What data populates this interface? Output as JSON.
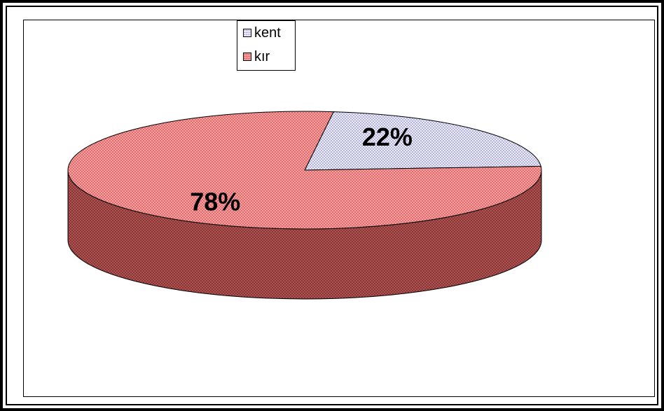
{
  "chart_data": {
    "type": "pie",
    "categories": [
      "kent",
      "kır"
    ],
    "values": [
      22,
      78
    ],
    "data_labels": [
      "22%",
      "78%"
    ],
    "legend": {
      "placement": "top-center",
      "entries": [
        "kent",
        "kır"
      ]
    },
    "three_d": true,
    "colors": {
      "kent_fill": "#eeeefa",
      "kent_dots": "#8a8acc",
      "kir_fill": "#f4a0a0",
      "kir_dots": "#d24a4a",
      "side_fill": "#8b3535",
      "side_dots": "#c06a6a"
    }
  }
}
